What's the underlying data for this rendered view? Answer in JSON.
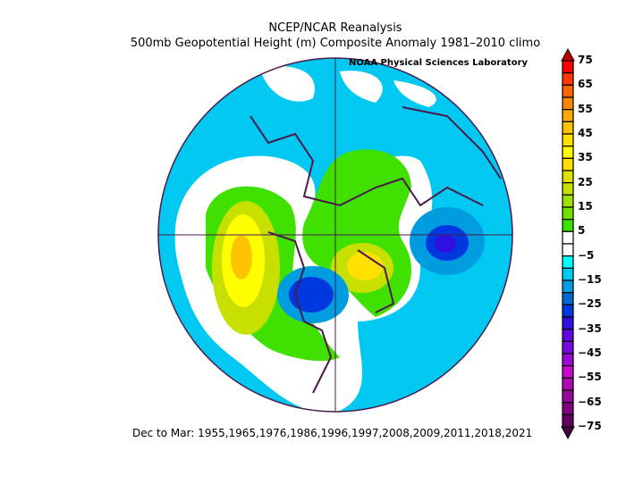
{
  "header": {
    "title": "NCEP/NCAR Reanalysis",
    "subtitle": "500mb Geopotential Height (m) Composite Anomaly 1981–2010 climo",
    "credit": "NOAA Physical Sciences Laboratory"
  },
  "footer": "Dec to Mar: 1955,1965,1976,1986,1996,1997,2008,2009,2011,2018,2021",
  "map": {
    "projection": "north polar stereographic",
    "variable": "500mb geopotential height anomaly (m)",
    "coastline_color": "#4b1a4b"
  },
  "colorbar": {
    "labels": [
      "75",
      "65",
      "55",
      "45",
      "35",
      "25",
      "15",
      "5",
      "−5",
      "−15",
      "−25",
      "−35",
      "−45",
      "−55",
      "−65",
      "−75"
    ],
    "top_triangle_color": "#c00000",
    "bottom_triangle_color": "#400040",
    "colors": [
      "#ff0000",
      "#ff3800",
      "#ff6400",
      "#ff8400",
      "#ffa800",
      "#ffc400",
      "#ffe000",
      "#ffff00",
      "#ffe000",
      "#e0e000",
      "#c8e000",
      "#a0e000",
      "#70e000",
      "#3ce000",
      "#ffffff",
      "#ffffff",
      "#00ffff",
      "#00c8f0",
      "#009ce0",
      "#0068d0",
      "#0038e0",
      "#3010e0",
      "#6008e0",
      "#7808e0",
      "#9808d0",
      "#c808d0",
      "#b008b0",
      "#980898",
      "#800080",
      "#600060"
    ]
  }
}
